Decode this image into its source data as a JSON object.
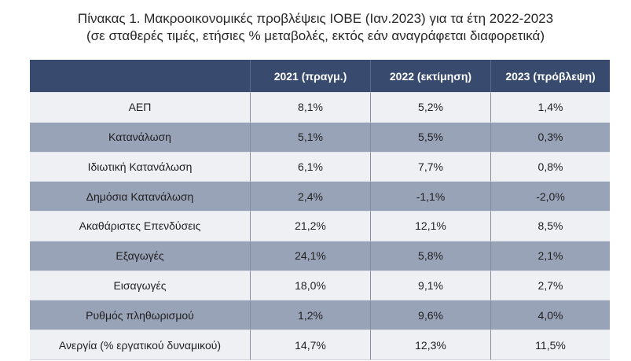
{
  "title": {
    "line1": "Πίνακας 1. Μακροοικονομικές προβλέψεις ΙΟΒΕ (Ιαν.2023) για τα έτη 2022-2023",
    "line2": "(σε σταθερές τιμές, ετήσιες % μεταβολές, εκτός εάν αναγράφεται διαφορετικά)"
  },
  "chart_data": {
    "type": "table",
    "title": "Πίνακας 1. Μακροοικονομικές προβλέψεις ΙΟΒΕ (Ιαν.2023) για τα έτη 2022-2023",
    "subtitle": "(σε σταθερές τιμές, ετήσιες % μεταβολές, εκτός εάν αναγράφεται διαφορετικά)",
    "columns": [
      "",
      "2021 (πραγμ.)",
      "2022 (εκτίμηση)",
      "2023 (πρόβλεψη)"
    ],
    "rows": [
      {
        "label": "ΑΕΠ",
        "values": [
          "8,1%",
          "5,2%",
          "1,4%"
        ]
      },
      {
        "label": "Κατανάλωση",
        "values": [
          "5,1%",
          "5,5%",
          "0,3%"
        ]
      },
      {
        "label": "Ιδιωτική Κατανάλωση",
        "values": [
          "6,1%",
          "7,7%",
          "0,8%"
        ]
      },
      {
        "label": "Δημόσια Κατανάλωση",
        "values": [
          "2,4%",
          "-1,1%",
          "-2,0%"
        ]
      },
      {
        "label": "Ακαθάριστες Επενδύσεις",
        "values": [
          "21,2%",
          "12,1%",
          "8,5%"
        ]
      },
      {
        "label": "Εξαγωγές",
        "values": [
          "24,1%",
          "5,8%",
          "2,1%"
        ]
      },
      {
        "label": "Εισαγωγές",
        "values": [
          "18,0%",
          "9,1%",
          "2,7%"
        ]
      },
      {
        "label": "Ρυθμός πληθωρισμού",
        "values": [
          "1,2%",
          "9,6%",
          "4,0%"
        ]
      },
      {
        "label": "Ανεργία (% εργατικού δυναμικού)",
        "values": [
          "14,7%",
          "12,3%",
          "11,5%"
        ]
      }
    ]
  },
  "colors": {
    "header_bg": "#384a6e",
    "row_light": "#eef0f4",
    "row_dark": "#99a3b8",
    "header_text": "#ffffff",
    "body_text": "#1f1f1f",
    "column_divider": "#858c9c",
    "title_text": "#262626"
  }
}
